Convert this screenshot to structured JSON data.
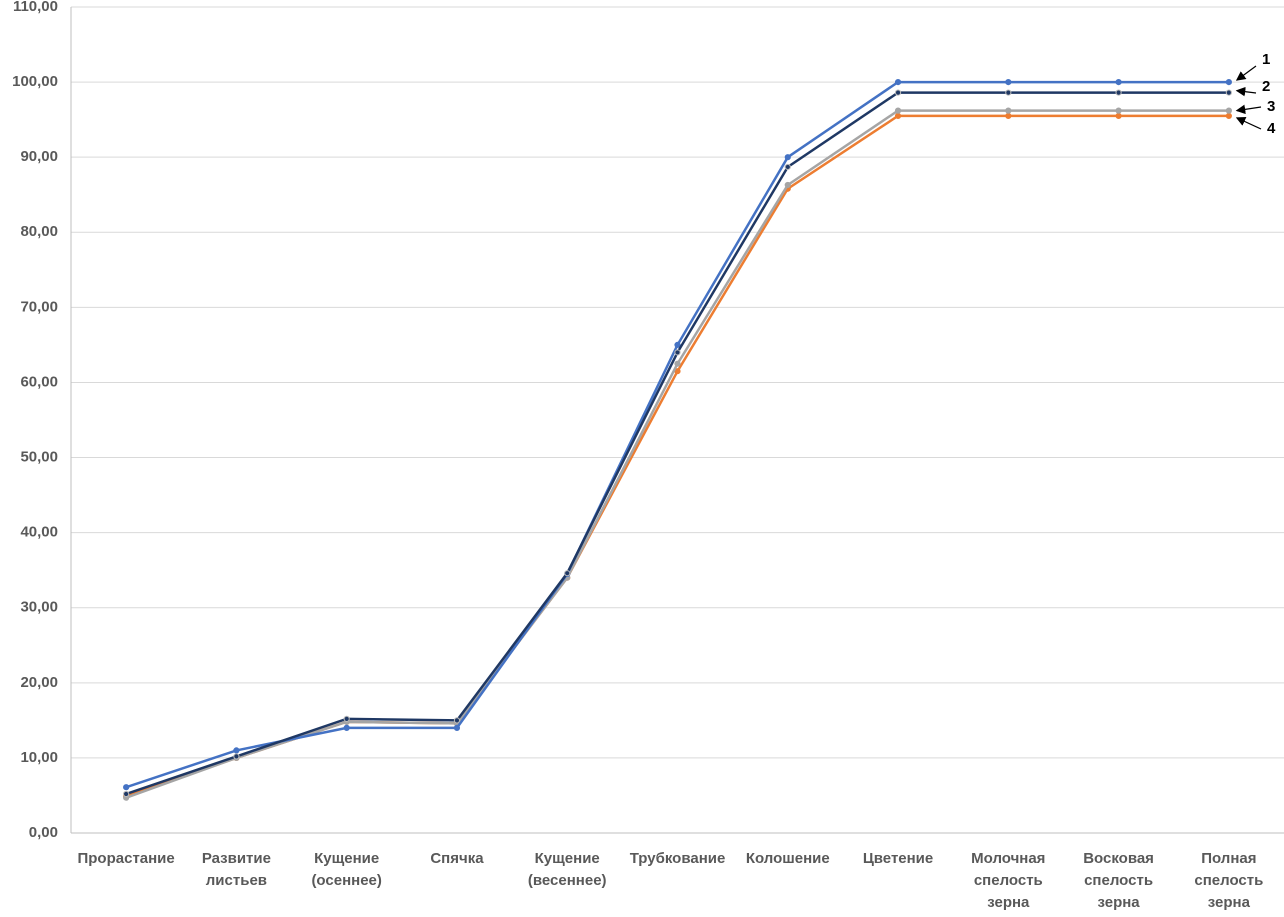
{
  "chart_data": {
    "type": "line",
    "categories": [
      "Прорастание",
      "Развитие листьев",
      "Кущение (осеннее)",
      "Спячка",
      "Кущение (весеннее)",
      "Трубкование",
      "Колошение",
      "Цветение",
      "Молочная спелость зерна",
      "Восковая спелость зерна",
      "Полная спелость зерна"
    ],
    "series": [
      {
        "name": "1",
        "color": "#4472c4",
        "values": [
          6.1,
          11.0,
          14.0,
          14.0,
          34.5,
          65.0,
          90.0,
          100.0,
          100.0,
          100.0,
          100.0
        ]
      },
      {
        "name": "2",
        "color": "#1f3864",
        "values": [
          5.2,
          10.2,
          15.2,
          15.0,
          34.6,
          64.0,
          88.7,
          98.6,
          98.6,
          98.6,
          98.6
        ]
      },
      {
        "name": "3",
        "color": "#a5a5a5",
        "values": [
          4.7,
          10.0,
          14.8,
          14.6,
          34.0,
          62.5,
          86.3,
          96.2,
          96.2,
          96.2,
          96.2
        ]
      },
      {
        "name": "4",
        "color": "#ed7d31",
        "values": [
          4.9,
          10.0,
          14.8,
          14.6,
          34.0,
          61.5,
          85.8,
          95.5,
          95.5,
          95.5,
          95.5
        ]
      }
    ],
    "ylim": [
      0,
      110
    ],
    "yticks": [
      {
        "value": 0,
        "label": "0,00"
      },
      {
        "value": 10,
        "label": "10,00"
      },
      {
        "value": 20,
        "label": "20,00"
      },
      {
        "value": 30,
        "label": "30,00"
      },
      {
        "value": 40,
        "label": "40,00"
      },
      {
        "value": 50,
        "label": "50,00"
      },
      {
        "value": 60,
        "label": "60,00"
      },
      {
        "value": 70,
        "label": "70,00"
      },
      {
        "value": 80,
        "label": "80,00"
      },
      {
        "value": 90,
        "label": "90,00"
      },
      {
        "value": 100,
        "label": "100,00"
      },
      {
        "value": 110,
        "label": "110,00"
      }
    ],
    "grid": true
  }
}
